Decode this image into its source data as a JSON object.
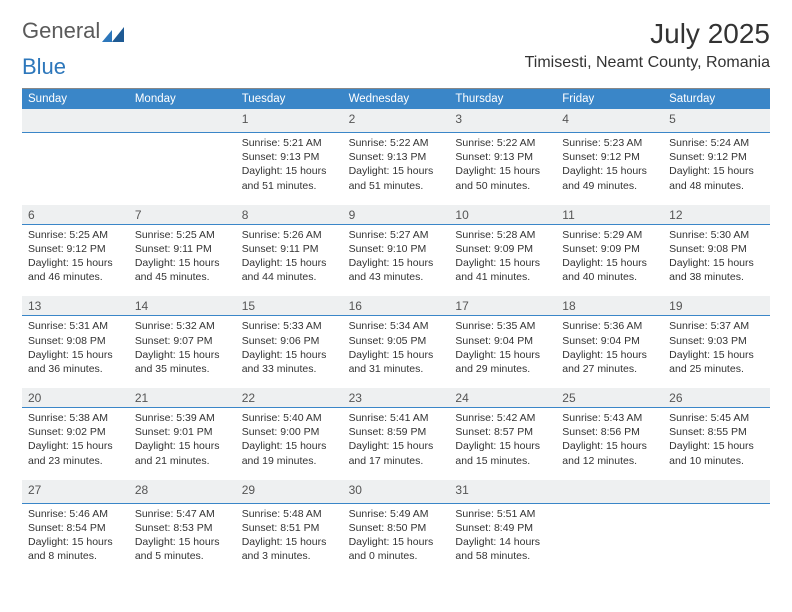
{
  "logo": {
    "part1": "General",
    "part2": "Blue"
  },
  "title": "July 2025",
  "location": "Timisesti, Neamt County, Romania",
  "colors": {
    "header_bg": "#3a86c8",
    "header_text": "#ffffff",
    "daynum_bg": "#eef0f1",
    "daynum_border": "#3a86c8",
    "page_border": "#888888",
    "text": "#333333"
  },
  "dow": [
    "Sunday",
    "Monday",
    "Tuesday",
    "Wednesday",
    "Thursday",
    "Friday",
    "Saturday"
  ],
  "weeks": [
    [
      null,
      null,
      {
        "n": "1",
        "sr": "5:21 AM",
        "ss": "9:13 PM",
        "dl": "15 hours and 51 minutes."
      },
      {
        "n": "2",
        "sr": "5:22 AM",
        "ss": "9:13 PM",
        "dl": "15 hours and 51 minutes."
      },
      {
        "n": "3",
        "sr": "5:22 AM",
        "ss": "9:13 PM",
        "dl": "15 hours and 50 minutes."
      },
      {
        "n": "4",
        "sr": "5:23 AM",
        "ss": "9:12 PM",
        "dl": "15 hours and 49 minutes."
      },
      {
        "n": "5",
        "sr": "5:24 AM",
        "ss": "9:12 PM",
        "dl": "15 hours and 48 minutes."
      }
    ],
    [
      {
        "n": "6",
        "sr": "5:25 AM",
        "ss": "9:12 PM",
        "dl": "15 hours and 46 minutes."
      },
      {
        "n": "7",
        "sr": "5:25 AM",
        "ss": "9:11 PM",
        "dl": "15 hours and 45 minutes."
      },
      {
        "n": "8",
        "sr": "5:26 AM",
        "ss": "9:11 PM",
        "dl": "15 hours and 44 minutes."
      },
      {
        "n": "9",
        "sr": "5:27 AM",
        "ss": "9:10 PM",
        "dl": "15 hours and 43 minutes."
      },
      {
        "n": "10",
        "sr": "5:28 AM",
        "ss": "9:09 PM",
        "dl": "15 hours and 41 minutes."
      },
      {
        "n": "11",
        "sr": "5:29 AM",
        "ss": "9:09 PM",
        "dl": "15 hours and 40 minutes."
      },
      {
        "n": "12",
        "sr": "5:30 AM",
        "ss": "9:08 PM",
        "dl": "15 hours and 38 minutes."
      }
    ],
    [
      {
        "n": "13",
        "sr": "5:31 AM",
        "ss": "9:08 PM",
        "dl": "15 hours and 36 minutes."
      },
      {
        "n": "14",
        "sr": "5:32 AM",
        "ss": "9:07 PM",
        "dl": "15 hours and 35 minutes."
      },
      {
        "n": "15",
        "sr": "5:33 AM",
        "ss": "9:06 PM",
        "dl": "15 hours and 33 minutes."
      },
      {
        "n": "16",
        "sr": "5:34 AM",
        "ss": "9:05 PM",
        "dl": "15 hours and 31 minutes."
      },
      {
        "n": "17",
        "sr": "5:35 AM",
        "ss": "9:04 PM",
        "dl": "15 hours and 29 minutes."
      },
      {
        "n": "18",
        "sr": "5:36 AM",
        "ss": "9:04 PM",
        "dl": "15 hours and 27 minutes."
      },
      {
        "n": "19",
        "sr": "5:37 AM",
        "ss": "9:03 PM",
        "dl": "15 hours and 25 minutes."
      }
    ],
    [
      {
        "n": "20",
        "sr": "5:38 AM",
        "ss": "9:02 PM",
        "dl": "15 hours and 23 minutes."
      },
      {
        "n": "21",
        "sr": "5:39 AM",
        "ss": "9:01 PM",
        "dl": "15 hours and 21 minutes."
      },
      {
        "n": "22",
        "sr": "5:40 AM",
        "ss": "9:00 PM",
        "dl": "15 hours and 19 minutes."
      },
      {
        "n": "23",
        "sr": "5:41 AM",
        "ss": "8:59 PM",
        "dl": "15 hours and 17 minutes."
      },
      {
        "n": "24",
        "sr": "5:42 AM",
        "ss": "8:57 PM",
        "dl": "15 hours and 15 minutes."
      },
      {
        "n": "25",
        "sr": "5:43 AM",
        "ss": "8:56 PM",
        "dl": "15 hours and 12 minutes."
      },
      {
        "n": "26",
        "sr": "5:45 AM",
        "ss": "8:55 PM",
        "dl": "15 hours and 10 minutes."
      }
    ],
    [
      {
        "n": "27",
        "sr": "5:46 AM",
        "ss": "8:54 PM",
        "dl": "15 hours and 8 minutes."
      },
      {
        "n": "28",
        "sr": "5:47 AM",
        "ss": "8:53 PM",
        "dl": "15 hours and 5 minutes."
      },
      {
        "n": "29",
        "sr": "5:48 AM",
        "ss": "8:51 PM",
        "dl": "15 hours and 3 minutes."
      },
      {
        "n": "30",
        "sr": "5:49 AM",
        "ss": "8:50 PM",
        "dl": "15 hours and 0 minutes."
      },
      {
        "n": "31",
        "sr": "5:51 AM",
        "ss": "8:49 PM",
        "dl": "14 hours and 58 minutes."
      },
      null,
      null
    ]
  ],
  "labels": {
    "sunrise": "Sunrise:",
    "sunset": "Sunset:",
    "daylight": "Daylight:"
  }
}
